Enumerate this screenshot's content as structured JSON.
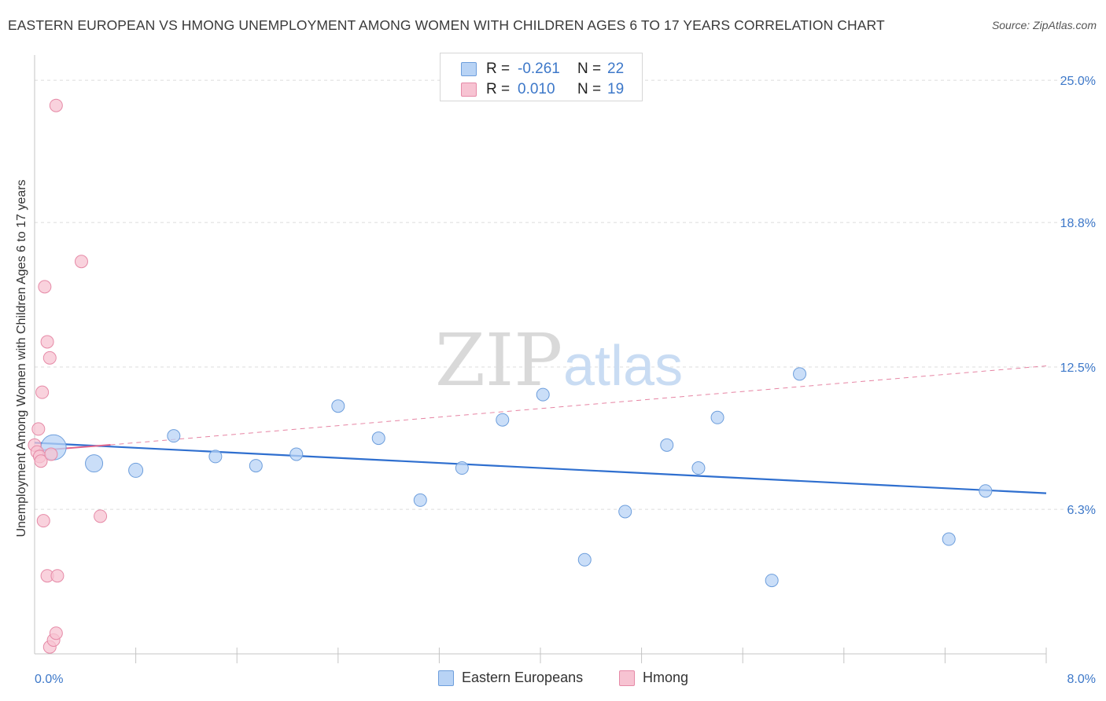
{
  "chart_data": {
    "type": "scatter",
    "title": "EASTERN EUROPEAN VS HMONG UNEMPLOYMENT AMONG WOMEN WITH CHILDREN AGES 6 TO 17 YEARS CORRELATION CHART",
    "source": "Source: ZipAtlas.com",
    "ylabel": "Unemployment Among Women with Children Ages 6 to 17 years",
    "xlabel": "",
    "xlim": [
      0,
      8
    ],
    "ylim": [
      0,
      26.1
    ],
    "x_tick_labels": [
      "0.0%",
      "8.0%"
    ],
    "y_ticks": [
      6.3,
      12.5,
      18.8,
      25.0
    ],
    "y_tick_labels": [
      "6.3%",
      "12.5%",
      "18.8%",
      "25.0%"
    ],
    "watermark": {
      "zip": "ZIP",
      "atlas": "atlas"
    },
    "legend": [
      {
        "r_label": "R =",
        "r_value": "-0.261",
        "n_label": "N =",
        "n_value": "22"
      },
      {
        "r_label": "R =",
        "r_value": "0.010",
        "n_label": "N =",
        "n_value": "19"
      }
    ],
    "series": [
      {
        "name": "Eastern Europeans",
        "fill": "#b8d3f5",
        "stroke": "#6d9edc",
        "line_color": "#2f6fcf",
        "points": [
          {
            "x": 0.15,
            "y": 9.0,
            "size": 16
          },
          {
            "x": 0.47,
            "y": 8.3,
            "size": 11
          },
          {
            "x": 0.8,
            "y": 8.0,
            "size": 9
          },
          {
            "x": 1.1,
            "y": 9.5,
            "size": 8
          },
          {
            "x": 1.43,
            "y": 8.6,
            "size": 8
          },
          {
            "x": 1.75,
            "y": 8.2,
            "size": 8
          },
          {
            "x": 2.07,
            "y": 8.7,
            "size": 8
          },
          {
            "x": 2.4,
            "y": 10.8,
            "size": 8
          },
          {
            "x": 2.72,
            "y": 9.4,
            "size": 8
          },
          {
            "x": 3.05,
            "y": 6.7,
            "size": 8
          },
          {
            "x": 3.38,
            "y": 8.1,
            "size": 8
          },
          {
            "x": 3.7,
            "y": 10.2,
            "size": 8
          },
          {
            "x": 4.02,
            "y": 11.3,
            "size": 8
          },
          {
            "x": 4.35,
            "y": 4.1,
            "size": 8
          },
          {
            "x": 4.67,
            "y": 6.2,
            "size": 8
          },
          {
            "x": 5.0,
            "y": 9.1,
            "size": 8
          },
          {
            "x": 5.25,
            "y": 8.1,
            "size": 8
          },
          {
            "x": 5.4,
            "y": 10.3,
            "size": 8
          },
          {
            "x": 5.83,
            "y": 3.2,
            "size": 8
          },
          {
            "x": 6.05,
            "y": 12.2,
            "size": 8
          },
          {
            "x": 7.23,
            "y": 5.0,
            "size": 8
          },
          {
            "x": 7.52,
            "y": 7.1,
            "size": 8
          }
        ],
        "trend": {
          "x0": 0.0,
          "y0": 9.2,
          "x1": 8.0,
          "y1": 7.0
        }
      },
      {
        "name": "Hmong",
        "fill": "#f7c3d2",
        "stroke": "#e68aa7",
        "line_color": "#e0668d",
        "points": [
          {
            "x": 0.0,
            "y": 9.1,
            "size": 8
          },
          {
            "x": 0.02,
            "y": 8.8,
            "size": 8
          },
          {
            "x": 0.03,
            "y": 9.8,
            "size": 8
          },
          {
            "x": 0.04,
            "y": 8.6,
            "size": 8
          },
          {
            "x": 0.05,
            "y": 8.4,
            "size": 8
          },
          {
            "x": 0.06,
            "y": 11.4,
            "size": 8
          },
          {
            "x": 0.07,
            "y": 5.8,
            "size": 8
          },
          {
            "x": 0.08,
            "y": 16.0,
            "size": 8
          },
          {
            "x": 0.1,
            "y": 13.6,
            "size": 8
          },
          {
            "x": 0.1,
            "y": 3.4,
            "size": 8
          },
          {
            "x": 0.12,
            "y": 12.9,
            "size": 8
          },
          {
            "x": 0.12,
            "y": 0.3,
            "size": 8
          },
          {
            "x": 0.13,
            "y": 8.7,
            "size": 8
          },
          {
            "x": 0.15,
            "y": 0.6,
            "size": 8
          },
          {
            "x": 0.17,
            "y": 0.9,
            "size": 8
          },
          {
            "x": 0.17,
            "y": 23.9,
            "size": 8
          },
          {
            "x": 0.18,
            "y": 3.4,
            "size": 8
          },
          {
            "x": 0.37,
            "y": 17.1,
            "size": 8
          },
          {
            "x": 0.52,
            "y": 6.0,
            "size": 8
          }
        ],
        "trend_solid": {
          "x0": 0.0,
          "y0": 8.85,
          "x1": 0.6,
          "y1": 9.11
        },
        "trend_dashed": {
          "x0": 0.6,
          "y0": 9.11,
          "x1": 8.0,
          "y1": 12.55
        }
      }
    ]
  }
}
